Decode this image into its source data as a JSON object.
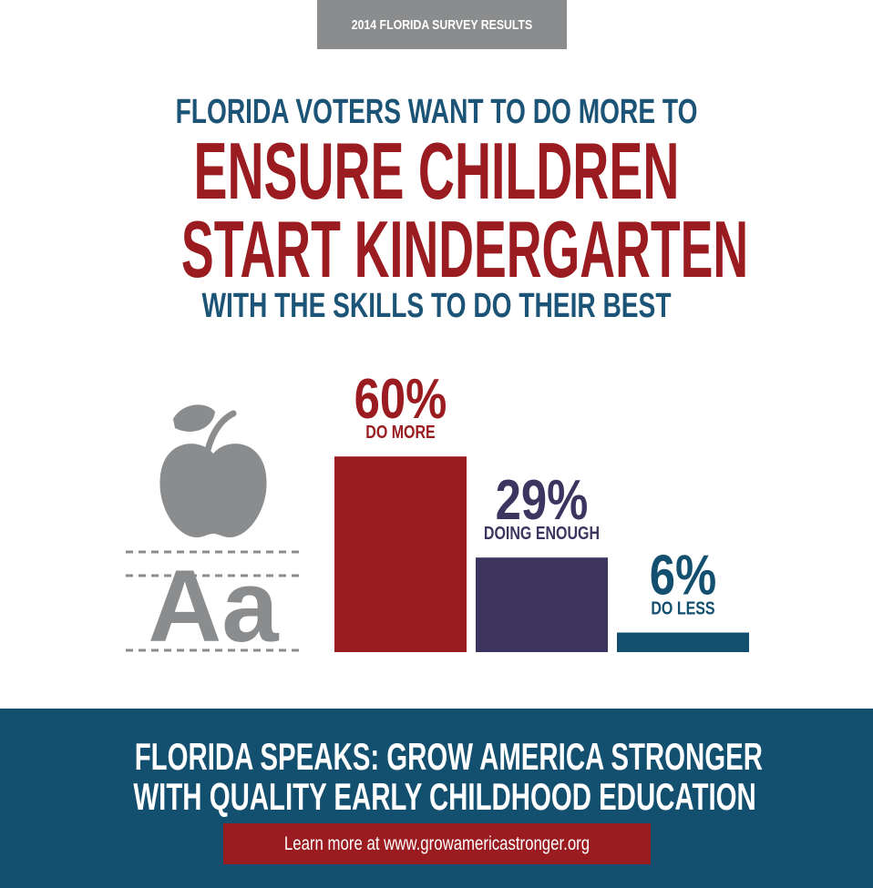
{
  "header": {
    "tag": "2014 FLORIDA SURVEY RESULTS",
    "line1": "FLORIDA VOTERS WANT TO DO MORE TO",
    "line2": "ENSURE CHILDREN",
    "line3": "START KINDERGARTEN",
    "line4": "WITH THE SKILLS TO DO THEIR BEST"
  },
  "icon": {
    "name": "apple-alphabet-icon",
    "letters": "Aa",
    "color": "#8a8c8e"
  },
  "chart_data": {
    "type": "bar",
    "title": "",
    "xlabel": "",
    "ylabel": "",
    "ylim": [
      0,
      100
    ],
    "grid": false,
    "categories": [
      "DO MORE",
      "DOING ENOUGH",
      "DO LESS"
    ],
    "values": [
      60,
      29,
      6
    ],
    "value_labels": [
      "60%",
      "29%",
      "6%"
    ],
    "colors": [
      "#9b1c20",
      "#3d355f",
      "#134f6e"
    ]
  },
  "footer": {
    "line1": "FLORIDA SPEAKS: GROW AMERICA STRONGER",
    "line2": "WITH QUALITY EARLY CHILDHOOD EDUCATION",
    "link": "Learn more at www.growamericastronger.org"
  }
}
